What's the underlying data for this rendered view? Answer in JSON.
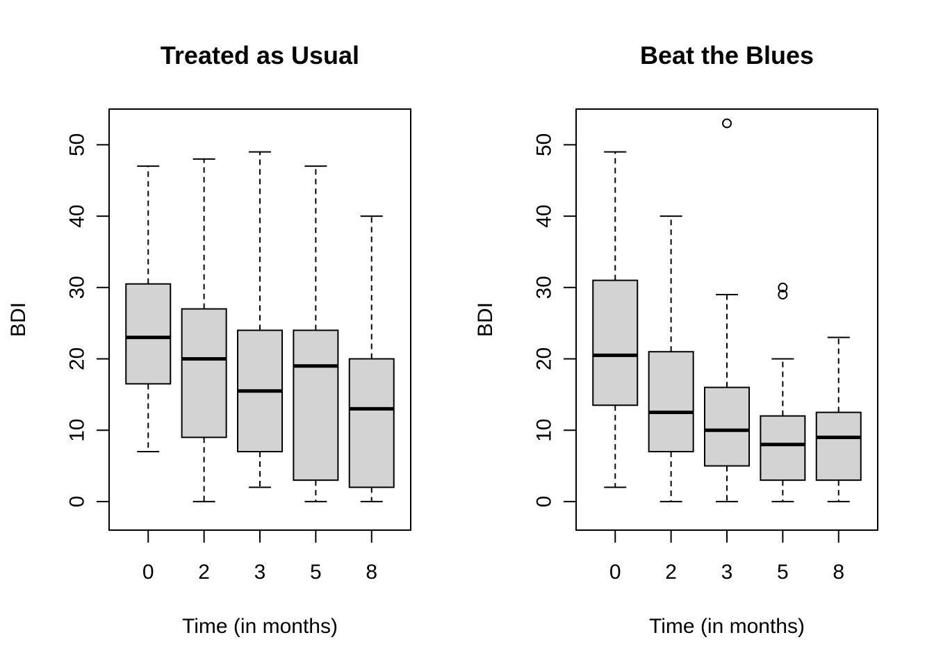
{
  "chart_data": [
    {
      "type": "boxplot",
      "title": "Treated as Usual",
      "xlabel": "Time (in months)",
      "ylabel": "BDI",
      "categories": [
        "0",
        "2",
        "3",
        "5",
        "8"
      ],
      "ylim": [
        -4,
        55
      ],
      "yticks": [
        0,
        10,
        20,
        30,
        40,
        50
      ],
      "fill_color": "#d3d3d3",
      "boxes": [
        {
          "min": 7,
          "q1": 16.5,
          "median": 23,
          "q3": 30.5,
          "max": 47,
          "outliers": []
        },
        {
          "min": 0,
          "q1": 9,
          "median": 20,
          "q3": 27,
          "max": 48,
          "outliers": []
        },
        {
          "min": 2,
          "q1": 7,
          "median": 15.5,
          "q3": 24,
          "max": 49,
          "outliers": []
        },
        {
          "min": 0,
          "q1": 3,
          "median": 19,
          "q3": 24,
          "max": 47,
          "outliers": []
        },
        {
          "min": 0,
          "q1": 2,
          "median": 13,
          "q3": 20,
          "max": 40,
          "outliers": []
        }
      ]
    },
    {
      "type": "boxplot",
      "title": "Beat the Blues",
      "xlabel": "Time (in months)",
      "ylabel": "BDI",
      "categories": [
        "0",
        "2",
        "3",
        "5",
        "8"
      ],
      "ylim": [
        -4,
        55
      ],
      "yticks": [
        0,
        10,
        20,
        30,
        40,
        50
      ],
      "fill_color": "#d3d3d3",
      "boxes": [
        {
          "min": 2,
          "q1": 13.5,
          "median": 20.5,
          "q3": 31,
          "max": 49,
          "outliers": []
        },
        {
          "min": 0,
          "q1": 7,
          "median": 12.5,
          "q3": 21,
          "max": 40,
          "outliers": []
        },
        {
          "min": 0,
          "q1": 5,
          "median": 10,
          "q3": 16,
          "max": 29,
          "outliers": [
            53
          ]
        },
        {
          "min": 0,
          "q1": 3,
          "median": 8,
          "q3": 12,
          "max": 20,
          "outliers": [
            29,
            30
          ]
        },
        {
          "min": 0,
          "q1": 3,
          "median": 9,
          "q3": 12.5,
          "max": 23,
          "outliers": []
        }
      ]
    }
  ]
}
